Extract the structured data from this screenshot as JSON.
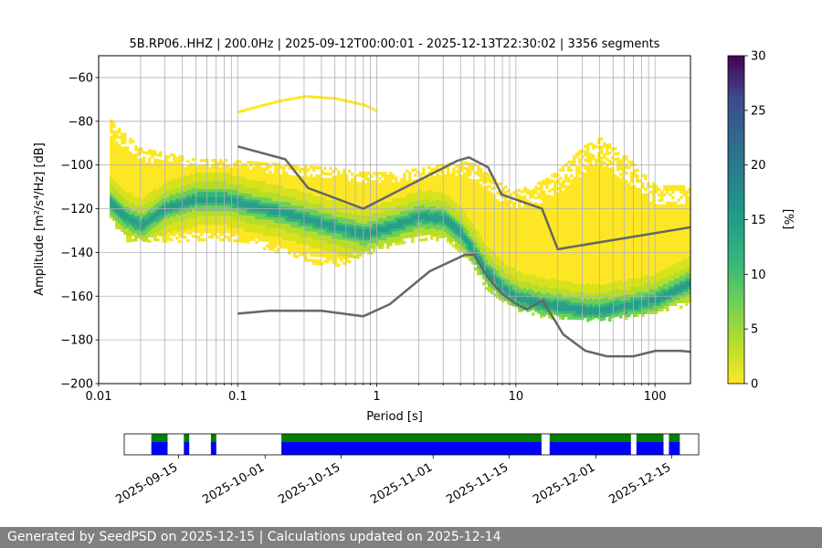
{
  "chart_data": [
    {
      "type": "heatmap",
      "title": "5B.RP06..HHZ | 200.0Hz | 2025-09-12T00:00:01 - 2025-12-13T22:30:02 | 3356 segments",
      "xlabel": "Period [s]",
      "ylabel": "Amplitude [m²/s⁴/Hz] [dB]",
      "xscale": "log",
      "xlim": [
        0.01,
        180
      ],
      "ylim": [
        -200,
        -50
      ],
      "xticks": [
        {
          "value": 0.01,
          "label": "0.01"
        },
        {
          "value": 0.1,
          "label": "0.1"
        },
        {
          "value": 1,
          "label": "1"
        },
        {
          "value": 10,
          "label": "10"
        },
        {
          "value": 100,
          "label": "100"
        }
      ],
      "yticks": [
        -200,
        -180,
        -160,
        -140,
        -120,
        -100,
        -80,
        -60
      ],
      "grid": true,
      "colorbar": {
        "label": "[%]",
        "min": 0,
        "max": 30,
        "ticks": [
          0,
          5,
          10,
          15,
          20,
          25,
          30
        ],
        "colormap": "viridis_r"
      },
      "mode_curve": {
        "x": [
          0.012,
          0.015,
          0.02,
          0.03,
          0.05,
          0.08,
          0.12,
          0.2,
          0.3,
          0.5,
          0.8,
          1.2,
          2,
          3,
          4,
          5,
          6,
          8,
          10,
          15,
          20,
          30,
          40,
          60,
          100,
          180
        ],
        "y": [
          -117,
          -123,
          -127,
          -119,
          -115,
          -115,
          -118,
          -121,
          -124,
          -128,
          -131,
          -128,
          -123,
          -124,
          -131,
          -140,
          -148,
          -156,
          -160,
          -163,
          -164,
          -166,
          -166,
          -164,
          -161,
          -153
        ]
      },
      "spread": {
        "lower": [
          -124,
          -133,
          -134,
          -134,
          -133,
          -133,
          -135,
          -139,
          -143,
          -145,
          -140,
          -136,
          -133,
          -133,
          -139,
          -146,
          -155,
          -162,
          -165,
          -168,
          -169,
          -170,
          -170,
          -169,
          -166,
          -163
        ],
        "upper": [
          -80,
          -86,
          -93,
          -95,
          -98,
          -98,
          -99,
          -100,
          -101,
          -102,
          -104,
          -104,
          -102,
          -100,
          -99,
          -100,
          -104,
          -110,
          -112,
          -108,
          -103,
          -92,
          -88,
          -96,
          -110,
          -110
        ]
      },
      "upper_outliers": {
        "x": [
          0.1,
          0.15,
          0.2,
          0.3,
          0.5,
          0.8,
          1
        ],
        "y": [
          -75,
          -72,
          -70,
          -68,
          -69,
          -72,
          -75
        ]
      },
      "noise_models": [
        {
          "x": [
            0.1,
            0.22,
            0.32,
            0.8,
            3.8,
            4.6,
            6.3,
            7.9,
            15.4,
            20,
            180
          ],
          "y": [
            -91.5,
            -97.4,
            -110.5,
            -120,
            -98,
            -96.5,
            -101,
            -113.5,
            -120,
            -138.5,
            -128.5
          ]
        },
        {
          "x": [
            0.1,
            0.17,
            0.4,
            0.8,
            1.24,
            2.4,
            4.3,
            5,
            6,
            7,
            8,
            10,
            12,
            15.6,
            21.9,
            31.6,
            45,
            70,
            101,
            154,
            180
          ],
          "y": [
            -168,
            -166.7,
            -166.7,
            -169.2,
            -163.7,
            -148.6,
            -141.1,
            -141.1,
            -149.4,
            -155,
            -159,
            -163.5,
            -166,
            -162,
            -177.5,
            -185,
            -187.5,
            -187.5,
            -185,
            -185,
            -185.5
          ]
        }
      ]
    },
    {
      "type": "timeline",
      "xlim": [
        "2025-09-05",
        "2025-12-20"
      ],
      "tick_labels": [
        "2025-09-15",
        "2025-10-01",
        "2025-10-15",
        "2025-11-01",
        "2025-11-15",
        "2025-12-01",
        "2025-12-15"
      ],
      "tick_dates": [
        "2025-09-15",
        "2025-10-01",
        "2025-10-15",
        "2025-11-01",
        "2025-11-15",
        "2025-12-01",
        "2025-12-15"
      ],
      "colors": {
        "top": "#008000",
        "bottom": "#0000ff"
      },
      "segments": [
        {
          "start": "2025-09-10",
          "end": "2025-09-13"
        },
        {
          "start": "2025-09-16",
          "end": "2025-09-17"
        },
        {
          "start": "2025-09-21",
          "end": "2025-09-22"
        },
        {
          "start": "2025-10-04",
          "end": "2025-11-21"
        },
        {
          "start": "2025-11-22.5",
          "end": "2025-12-07.5"
        },
        {
          "start": "2025-12-08.5",
          "end": "2025-12-13.5"
        },
        {
          "start": "2025-12-14.5",
          "end": "2025-12-16.5"
        }
      ]
    }
  ],
  "footer": "Generated by SeedPSD on 2025-12-15 | Calculations updated on 2025-12-14"
}
